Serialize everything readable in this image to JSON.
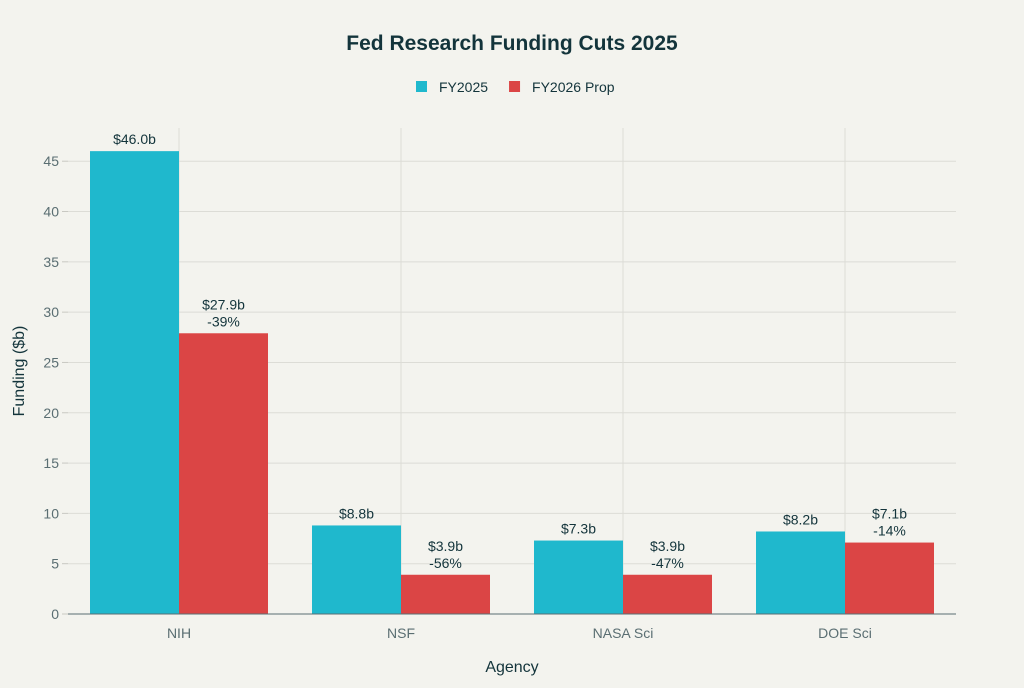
{
  "chart_data": {
    "type": "bar",
    "title": "Fed Research Funding Cuts 2025",
    "xlabel": "Agency",
    "ylabel": "Funding ($b)",
    "ylim": [
      0,
      48.3
    ],
    "yticks": [
      0,
      5,
      10,
      15,
      20,
      25,
      30,
      35,
      40,
      45
    ],
    "grid": true,
    "legend_position": "top-center",
    "categories": [
      "NIH",
      "NSF",
      "NASA Sci",
      "DOE Sci"
    ],
    "series": [
      {
        "name": "FY2025",
        "color": "#1FB8CD",
        "values": [
          46.0,
          8.8,
          7.3,
          8.2
        ],
        "labels": [
          [
            "$46.0b"
          ],
          [
            "$8.8b"
          ],
          [
            "$7.3b"
          ],
          [
            "$8.2b"
          ]
        ]
      },
      {
        "name": "FY2026 Prop",
        "color": "#DB4545",
        "values": [
          27.9,
          3.9,
          3.9,
          7.1
        ],
        "labels": [
          [
            "$27.9b",
            "-39%"
          ],
          [
            "$3.9b",
            "-56%"
          ],
          [
            "$3.9b",
            "-47%"
          ],
          [
            "$7.1b",
            "-14%"
          ]
        ]
      }
    ]
  }
}
